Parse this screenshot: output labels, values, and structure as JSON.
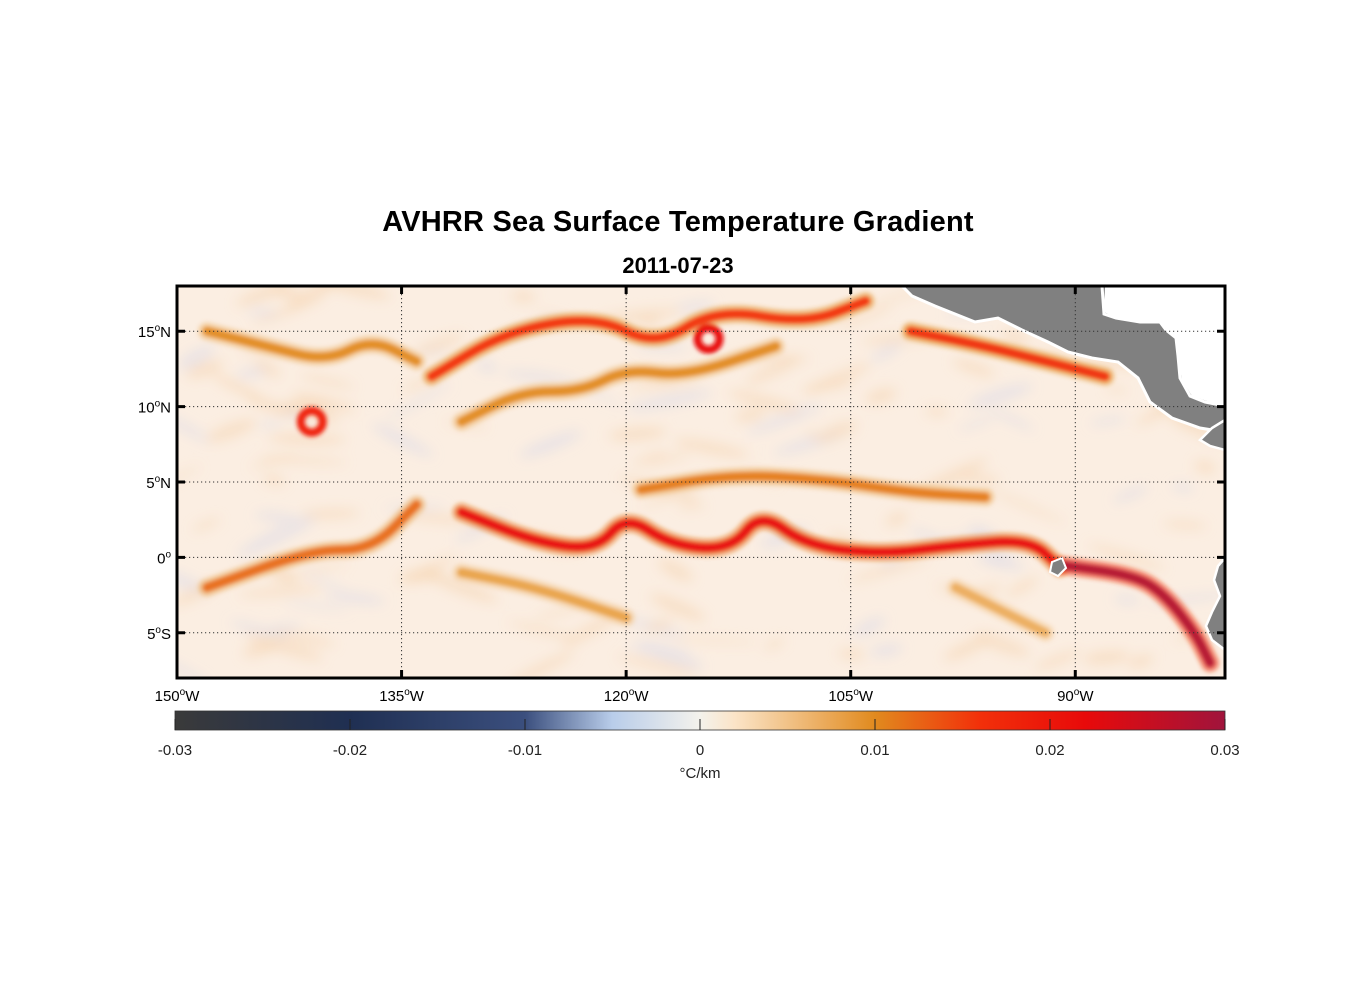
{
  "title": "AVHRR Sea Surface Temperature Gradient",
  "subtitle": "2011-07-23",
  "map": {
    "lon_range": [
      -150,
      -80
    ],
    "lat_range": [
      -8,
      18
    ],
    "lon_ticks": [
      {
        "value": -150,
        "deg": "150",
        "hemi": "W"
      },
      {
        "value": -135,
        "deg": "135",
        "hemi": "W"
      },
      {
        "value": -120,
        "deg": "120",
        "hemi": "W"
      },
      {
        "value": -105,
        "deg": "105",
        "hemi": "W"
      },
      {
        "value": -90,
        "deg": "90",
        "hemi": "W"
      }
    ],
    "lat_ticks": [
      {
        "value": 15,
        "deg": "15",
        "hemi": "N"
      },
      {
        "value": 10,
        "deg": "10",
        "hemi": "N"
      },
      {
        "value": 5,
        "deg": "5",
        "hemi": "N"
      },
      {
        "value": 0,
        "deg": "0",
        "hemi": ""
      },
      {
        "value": -5,
        "deg": "5",
        "hemi": "S"
      }
    ],
    "grid": "dotted",
    "land_color": "#808080",
    "ocean_background": "#fbeee2",
    "gradient_features": [
      {
        "lonlat": [
          [
            -148,
            -2
          ],
          [
            -141,
            0.5
          ],
          [
            -137,
            0.5
          ],
          [
            -134,
            3.5
          ]
        ],
        "value": 0.012
      },
      {
        "lonlat": [
          [
            -131,
            3
          ],
          [
            -126,
            1
          ],
          [
            -122,
            0.5
          ],
          [
            -120,
            2.8
          ],
          [
            -117,
            0.8
          ],
          [
            -113,
            0.5
          ],
          [
            -111,
            3
          ],
          [
            -108,
            0.8
          ],
          [
            -103,
            0.2
          ],
          [
            -98,
            0.8
          ],
          [
            -93,
            1.2
          ],
          [
            -91,
            -0.7
          ]
        ],
        "value": 0.022
      },
      {
        "lonlat": [
          [
            -119,
            4.5
          ],
          [
            -113,
            5.5
          ],
          [
            -107,
            5.2
          ],
          [
            -101,
            4.3
          ],
          [
            -96,
            4
          ]
        ],
        "value": 0.011
      },
      {
        "lonlat": [
          [
            -133,
            12
          ],
          [
            -128,
            15
          ],
          [
            -122,
            16
          ],
          [
            -118,
            14
          ],
          [
            -114,
            16.5
          ],
          [
            -108,
            15.5
          ],
          [
            -104,
            17
          ]
        ],
        "value": 0.016
      },
      {
        "lonlat": [
          [
            -131,
            9
          ],
          [
            -127,
            11
          ],
          [
            -123,
            11
          ],
          [
            -120,
            12.5
          ],
          [
            -116,
            12
          ],
          [
            -110,
            14
          ]
        ],
        "value": 0.01
      },
      {
        "lonlat": [
          [
            -148,
            15
          ],
          [
            -144,
            14
          ],
          [
            -140,
            13
          ],
          [
            -137,
            14.5
          ],
          [
            -134,
            13
          ]
        ],
        "value": 0.01
      },
      {
        "lonlat": [
          [
            -101,
            15
          ],
          [
            -96,
            14
          ],
          [
            -92,
            13
          ],
          [
            -88,
            12
          ]
        ],
        "value": 0.017
      },
      {
        "lonlat": [
          [
            -91,
            -0.5
          ],
          [
            -86,
            -1.2
          ],
          [
            -84,
            -2.5
          ],
          [
            -82,
            -5
          ],
          [
            -81,
            -7
          ]
        ],
        "value": 0.028
      },
      {
        "lonlat": [
          [
            -131,
            -1
          ],
          [
            -126,
            -2
          ],
          [
            -120,
            -4
          ]
        ],
        "value": 0.008
      },
      {
        "lonlat": [
          [
            -98,
            -2
          ],
          [
            -95,
            -3.5
          ],
          [
            -92,
            -5
          ]
        ],
        "value": 0.007
      }
    ],
    "gradient_spots": [
      {
        "lon": -141,
        "lat": 9,
        "value": 0.018
      },
      {
        "lon": -114.5,
        "lat": 14.5,
        "value": 0.022
      }
    ]
  },
  "colorbar": {
    "min": -0.03,
    "max": 0.03,
    "ticks": [
      "-0.03",
      "-0.02",
      "-0.01",
      "0",
      "0.01",
      "0.02",
      "0.03"
    ],
    "tick_values": [
      -0.03,
      -0.02,
      -0.01,
      0,
      0.01,
      0.02,
      0.03
    ],
    "unit_symbol": "°",
    "unit_text": "C/km",
    "stops": [
      {
        "value": -0.03,
        "color": "#3a3a3a"
      },
      {
        "value": -0.02,
        "color": "#1f2f52"
      },
      {
        "value": -0.01,
        "color": "#3b4f7e"
      },
      {
        "value": -0.005,
        "color": "#b9cdea"
      },
      {
        "value": 0,
        "color": "#f4f2ec"
      },
      {
        "value": 0.002,
        "color": "#fbe4c7"
      },
      {
        "value": 0.01,
        "color": "#e18a1e"
      },
      {
        "value": 0.016,
        "color": "#f2300a"
      },
      {
        "value": 0.022,
        "color": "#e80a0a"
      },
      {
        "value": 0.03,
        "color": "#a0143c"
      }
    ]
  }
}
